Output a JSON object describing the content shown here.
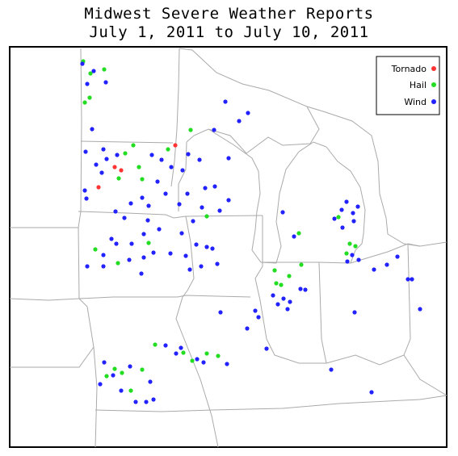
{
  "title": "Midwest Severe Weather Reports",
  "subtitle": "July 1, 2011 to July 10, 2011",
  "legend": [
    {
      "label": "Tornado",
      "color": "#ff3333"
    },
    {
      "label": "Hail",
      "color": "#22dd22"
    },
    {
      "label": "Wind",
      "color": "#2222ff"
    }
  ],
  "reports": {
    "tornado": [
      [
        142,
        207
      ],
      [
        150,
        211
      ],
      [
        122,
        232
      ],
      [
        217,
        180
      ]
    ],
    "hail": [
      [
        103,
        76
      ],
      [
        112,
        91
      ],
      [
        129,
        86
      ],
      [
        105,
        127
      ],
      [
        111,
        121
      ],
      [
        155,
        190
      ],
      [
        165,
        180
      ],
      [
        172,
        207
      ],
      [
        176,
        222
      ],
      [
        147,
        221
      ],
      [
        208,
        185
      ],
      [
        236,
        161
      ],
      [
        256,
        268
      ],
      [
        118,
        309
      ],
      [
        146,
        326
      ],
      [
        184,
        301
      ],
      [
        348,
        353
      ],
      [
        373,
        328
      ],
      [
        358,
        342
      ],
      [
        340,
        335
      ],
      [
        342,
        351
      ],
      [
        370,
        289
      ],
      [
        419,
        269
      ],
      [
        429,
        314
      ],
      [
        433,
        302
      ],
      [
        440,
        305
      ],
      [
        192,
        427
      ],
      [
        238,
        447
      ],
      [
        270,
        441
      ],
      [
        256,
        438
      ],
      [
        227,
        437
      ],
      [
        142,
        457
      ],
      [
        151,
        462
      ],
      [
        176,
        458
      ],
      [
        162,
        484
      ],
      [
        132,
        466
      ]
    ],
    "wind": [
      [
        102,
        79
      ],
      [
        116,
        88
      ],
      [
        131,
        102
      ],
      [
        108,
        104
      ],
      [
        279,
        126
      ],
      [
        296,
        150
      ],
      [
        307,
        140
      ],
      [
        114,
        160
      ],
      [
        106,
        188
      ],
      [
        128,
        185
      ],
      [
        145,
        192
      ],
      [
        126,
        214
      ],
      [
        119,
        204
      ],
      [
        132,
        197
      ],
      [
        188,
        192
      ],
      [
        200,
        198
      ],
      [
        212,
        207
      ],
      [
        226,
        211
      ],
      [
        233,
        191
      ],
      [
        195,
        225
      ],
      [
        176,
        245
      ],
      [
        184,
        255
      ],
      [
        162,
        252
      ],
      [
        143,
        262
      ],
      [
        154,
        270
      ],
      [
        183,
        273
      ],
      [
        205,
        240
      ],
      [
        222,
        253
      ],
      [
        232,
        240
      ],
      [
        254,
        233
      ],
      [
        266,
        231
      ],
      [
        283,
        248
      ],
      [
        272,
        261
      ],
      [
        250,
        257
      ],
      [
        239,
        274
      ],
      [
        225,
        289
      ],
      [
        197,
        284
      ],
      [
        178,
        290
      ],
      [
        163,
        302
      ],
      [
        138,
        296
      ],
      [
        128,
        316
      ],
      [
        144,
        302
      ],
      [
        160,
        322
      ],
      [
        178,
        319
      ],
      [
        190,
        313
      ],
      [
        211,
        314
      ],
      [
        230,
        317
      ],
      [
        243,
        303
      ],
      [
        256,
        306
      ],
      [
        263,
        308
      ],
      [
        249,
        330
      ],
      [
        235,
        334
      ],
      [
        269,
        327
      ],
      [
        175,
        339
      ],
      [
        108,
        330
      ],
      [
        128,
        330
      ],
      [
        283,
        196
      ],
      [
        265,
        161
      ],
      [
        247,
        198
      ],
      [
        105,
        236
      ],
      [
        107,
        246
      ],
      [
        350,
        263
      ],
      [
        364,
        293
      ],
      [
        338,
        366
      ],
      [
        344,
        377
      ],
      [
        359,
        374
      ],
      [
        372,
        358
      ],
      [
        351,
        370
      ],
      [
        378,
        359
      ],
      [
        356,
        383
      ],
      [
        316,
        385
      ],
      [
        320,
        393
      ],
      [
        306,
        407
      ],
      [
        273,
        387
      ],
      [
        218,
        438
      ],
      [
        224,
        431
      ],
      [
        205,
        428
      ],
      [
        244,
        445
      ],
      [
        252,
        449
      ],
      [
        281,
        451
      ],
      [
        129,
        449
      ],
      [
        161,
        454
      ],
      [
        186,
        473
      ],
      [
        181,
        498
      ],
      [
        168,
        498
      ],
      [
        190,
        495
      ],
      [
        140,
        465
      ],
      [
        124,
        476
      ],
      [
        150,
        484
      ],
      [
        330,
        432
      ],
      [
        410,
        458
      ],
      [
        460,
        486
      ],
      [
        414,
        271
      ],
      [
        423,
        260
      ],
      [
        429,
        250
      ],
      [
        437,
        264
      ],
      [
        438,
        274
      ],
      [
        443,
        256
      ],
      [
        424,
        282
      ],
      [
        430,
        324
      ],
      [
        436,
        316
      ],
      [
        444,
        322
      ],
      [
        463,
        334
      ],
      [
        479,
        328
      ],
      [
        492,
        318
      ],
      [
        505,
        346
      ],
      [
        510,
        346
      ],
      [
        439,
        387
      ],
      [
        520,
        383
      ]
    ]
  }
}
